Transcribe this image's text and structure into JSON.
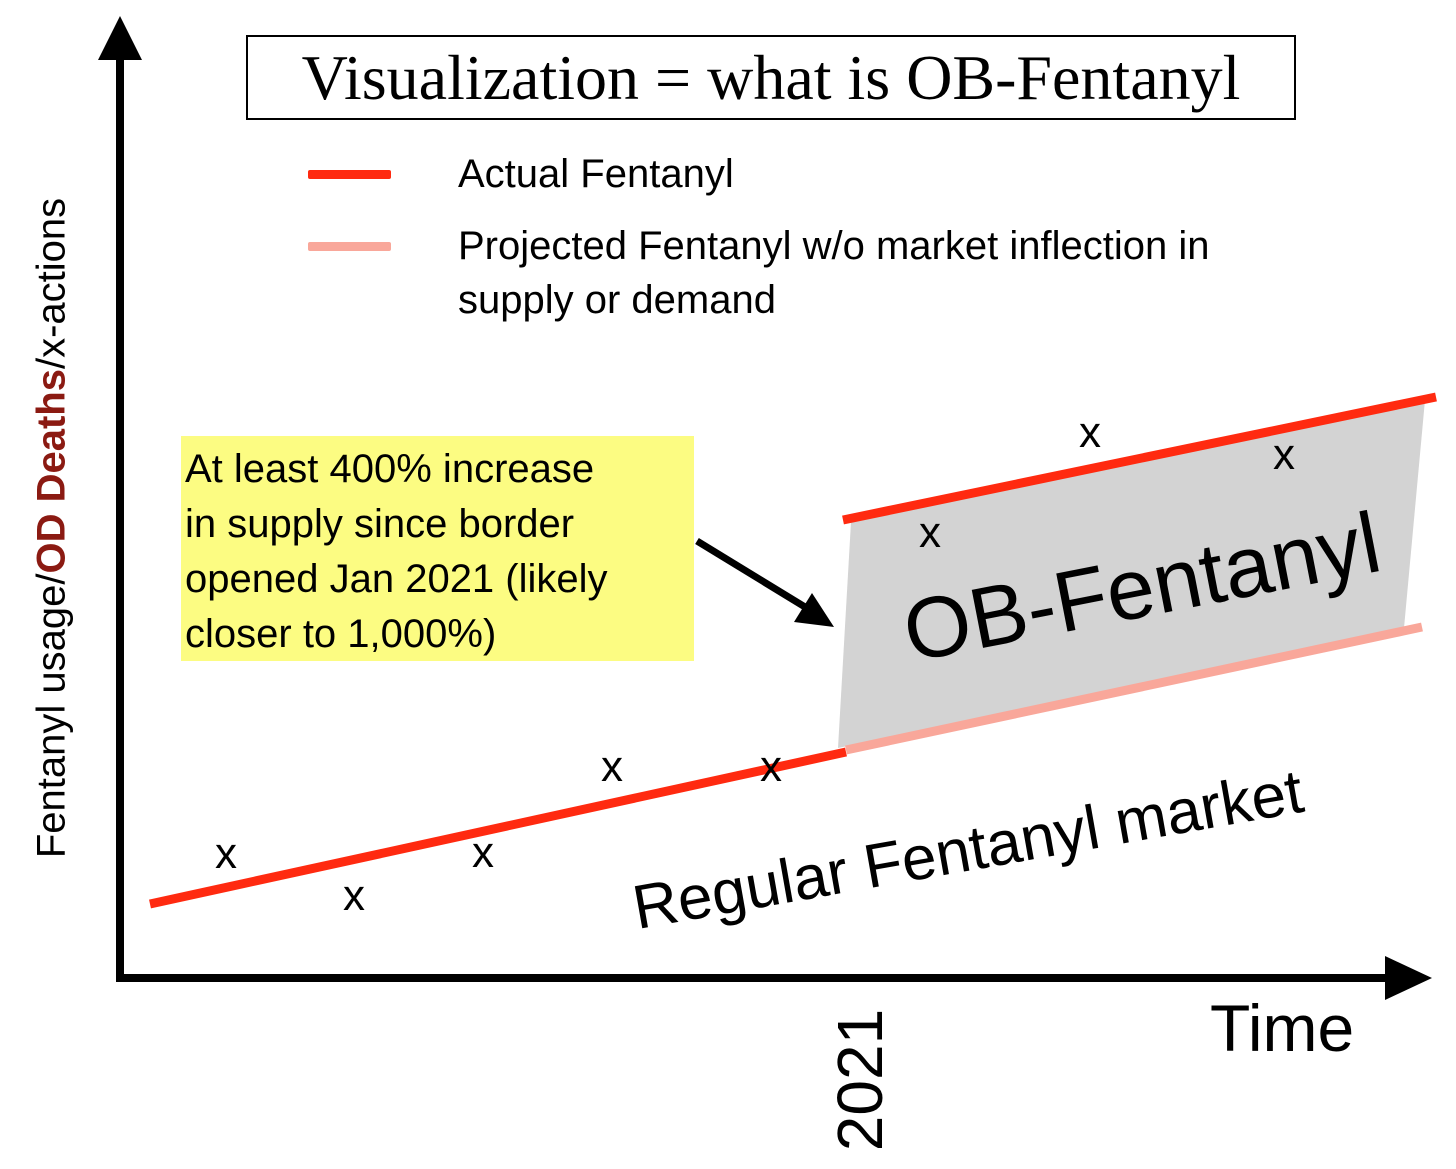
{
  "title": "Visualization = what is OB-Fentanyl",
  "legend": [
    {
      "label": "Actual Fentanyl",
      "color": "#ff2a10"
    },
    {
      "label": "Projected Fentanyl w/o market inflection in",
      "label_line2": "supply or demand",
      "color": "#f9a79a"
    }
  ],
  "axes": {
    "y_label_part1": "Fentanyl usage/",
    "y_label_red": "OD Deaths",
    "y_label_part2": "/x-actions",
    "x_label": "Time",
    "x_marker": "2021"
  },
  "callout": {
    "lines": [
      "At least 400% increase",
      "in supply since border",
      "opened Jan 2021 (likely",
      "closer to 1,000%)"
    ],
    "background": "#fcfc82"
  },
  "region_labels": {
    "ob": "OB-Fentanyl",
    "regular": "Regular Fentanyl market"
  },
  "marker_symbol": "x",
  "colors": {
    "actual": "#ff2a10",
    "projected": "#f9a79a",
    "ob_fill": "#d3d3d3",
    "axis": "#000000"
  }
}
